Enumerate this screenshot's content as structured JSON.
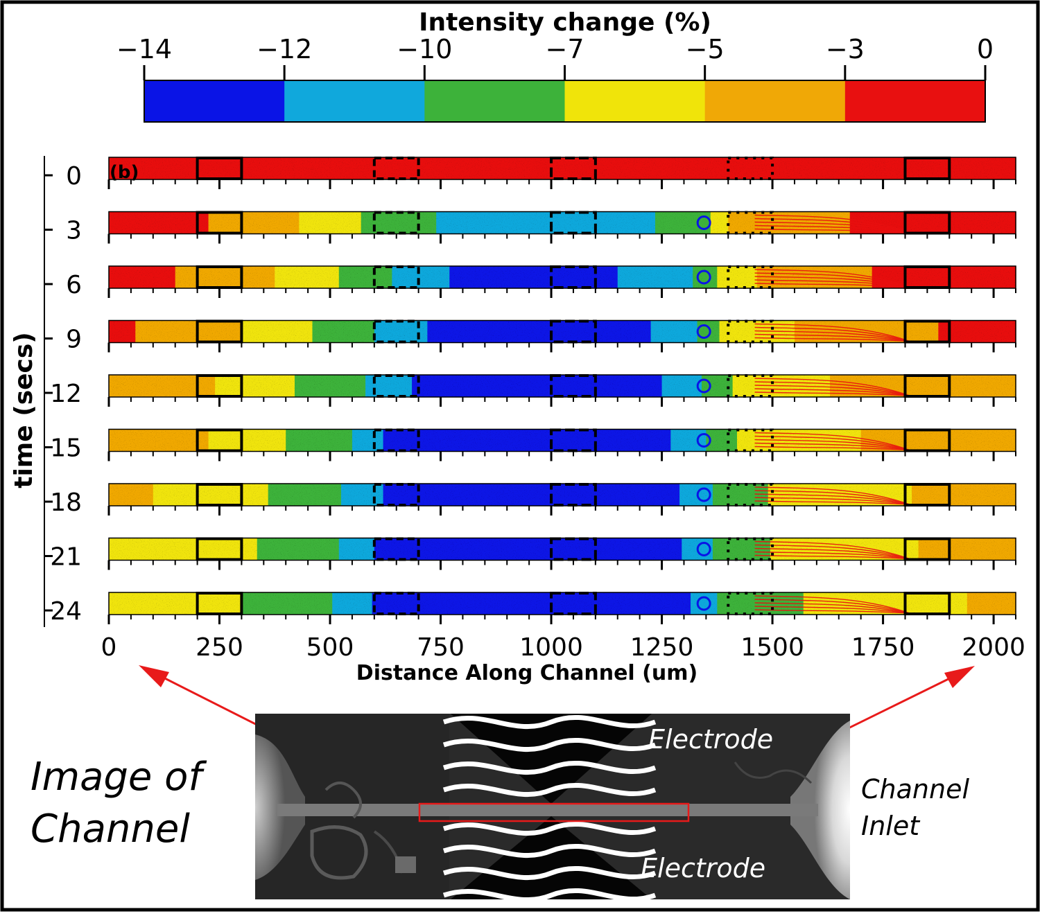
{
  "colorbar": {
    "title": "Intensity change (%)",
    "ticks": [
      "−14",
      "−12",
      "−10",
      "−7",
      "−5",
      "−3",
      "0"
    ],
    "bins": [
      {
        "color": "#0a14e6"
      },
      {
        "color": "#10a8dc"
      },
      {
        "color": "#3db23a"
      },
      {
        "color": "#f0e40a"
      },
      {
        "color": "#f0a806"
      },
      {
        "color": "#e81010"
      }
    ]
  },
  "panel_label": "(b)",
  "chart_data": {
    "type": "heatmap",
    "xlabel": "Distance Along Channel (um)",
    "ylabel": "time (secs)",
    "xlim": [
      0,
      2050
    ],
    "x_ticks": [
      0,
      250,
      500,
      750,
      1000,
      1250,
      1500,
      1750,
      2000
    ],
    "y_ticks": [
      0,
      3,
      6,
      9,
      12,
      15,
      18,
      21,
      24
    ],
    "rows": [
      {
        "t": 0,
        "profile": [
          [
            0,
            -0.5
          ],
          [
            2050,
            -0.5
          ]
        ]
      },
      {
        "t": 3,
        "profile": [
          [
            0,
            -1.5
          ],
          [
            300,
            -3.5
          ],
          [
            520,
            -6
          ],
          [
            620,
            -8
          ],
          [
            740,
            -10
          ],
          [
            950,
            -12
          ],
          [
            1150,
            -11
          ],
          [
            1320,
            -9
          ],
          [
            1400,
            -5
          ],
          [
            1550,
            -4
          ],
          [
            1800,
            -2
          ],
          [
            2050,
            -1
          ]
        ]
      },
      {
        "t": 6,
        "profile": [
          [
            0,
            -2
          ],
          [
            300,
            -4
          ],
          [
            520,
            -7
          ],
          [
            640,
            -10
          ],
          [
            800,
            -12.5
          ],
          [
            1150,
            -12
          ],
          [
            1320,
            -10
          ],
          [
            1400,
            -5.5
          ],
          [
            1600,
            -4
          ],
          [
            1850,
            -2
          ],
          [
            2050,
            -1.5
          ]
        ]
      },
      {
        "t": 9,
        "profile": [
          [
            0,
            -2.5
          ],
          [
            300,
            -5
          ],
          [
            500,
            -7.5
          ],
          [
            640,
            -11
          ],
          [
            800,
            -13
          ],
          [
            1200,
            -12.5
          ],
          [
            1330,
            -10
          ],
          [
            1400,
            -6
          ],
          [
            1700,
            -4
          ],
          [
            2050,
            -2
          ]
        ]
      },
      {
        "t": 12,
        "profile": [
          [
            0,
            -3
          ],
          [
            300,
            -5.5
          ],
          [
            500,
            -8
          ],
          [
            640,
            -11.5
          ],
          [
            780,
            -13
          ],
          [
            1200,
            -13
          ],
          [
            1330,
            -10.5
          ],
          [
            1420,
            -6.5
          ],
          [
            1700,
            -4.5
          ],
          [
            2050,
            -3
          ]
        ]
      },
      {
        "t": 15,
        "profile": [
          [
            0,
            -3.5
          ],
          [
            300,
            -5.5
          ],
          [
            500,
            -8.5
          ],
          [
            620,
            -12
          ],
          [
            760,
            -13
          ],
          [
            1220,
            -13
          ],
          [
            1340,
            -10.5
          ],
          [
            1420,
            -7
          ],
          [
            1700,
            -5
          ],
          [
            2050,
            -3.5
          ]
        ]
      },
      {
        "t": 18,
        "profile": [
          [
            0,
            -4.5
          ],
          [
            300,
            -6
          ],
          [
            480,
            -9
          ],
          [
            620,
            -12
          ],
          [
            740,
            -13.5
          ],
          [
            1220,
            -13.5
          ],
          [
            1340,
            -11
          ],
          [
            1420,
            -7.5
          ],
          [
            1700,
            -5.5
          ],
          [
            2050,
            -4
          ]
        ]
      },
      {
        "t": 21,
        "profile": [
          [
            0,
            -5
          ],
          [
            300,
            -6.5
          ],
          [
            480,
            -9
          ],
          [
            620,
            -12.5
          ],
          [
            740,
            -13.5
          ],
          [
            1230,
            -13.5
          ],
          [
            1340,
            -11
          ],
          [
            1420,
            -7.5
          ],
          [
            1720,
            -5.5
          ],
          [
            2050,
            -4
          ]
        ]
      },
      {
        "t": 24,
        "profile": [
          [
            0,
            -5
          ],
          [
            300,
            -7
          ],
          [
            480,
            -9.5
          ],
          [
            620,
            -12.5
          ],
          [
            720,
            -13.5
          ],
          [
            1240,
            -13.5
          ],
          [
            1340,
            -11.5
          ],
          [
            1420,
            -8
          ],
          [
            1720,
            -6
          ],
          [
            2050,
            -4.5
          ]
        ]
      }
    ],
    "electrode_regions_um": [
      [
        200,
        300
      ],
      [
        600,
        700
      ],
      [
        1000,
        1100
      ],
      [
        1400,
        1500
      ],
      [
        1800,
        1900
      ]
    ]
  },
  "photo": {
    "title_line1": "Image of",
    "title_line2": "Channel",
    "electrode_top": "Electrode",
    "electrode_bottom": "Electrode",
    "inlet_line1": "Channel",
    "inlet_line2": "Inlet"
  }
}
